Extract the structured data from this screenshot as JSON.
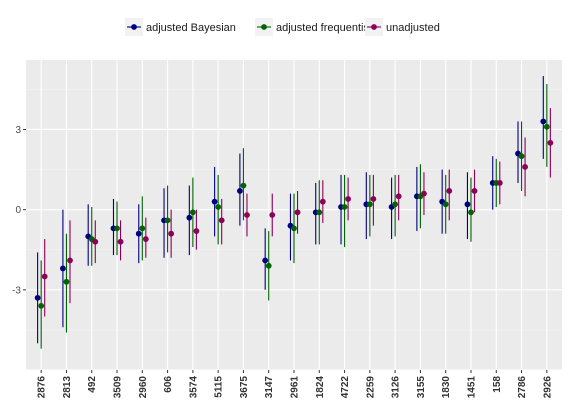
{
  "chart_data": {
    "type": "scatter",
    "subtype": "point-range",
    "title": "",
    "xlabel": "",
    "ylabel": "",
    "ylim": [
      -6.0,
      5.6
    ],
    "y_ticks": [
      -3,
      0,
      3
    ],
    "grid": true,
    "legend": {
      "position": "top",
      "show": true
    },
    "categories": [
      "2876",
      "2813",
      "492",
      "3509",
      "2960",
      "606",
      "3574",
      "5115",
      "3675",
      "3147",
      "2961",
      "1824",
      "4722",
      "2259",
      "3126",
      "3155",
      "1830",
      "1451",
      "158",
      "2786",
      "2926"
    ],
    "series": [
      {
        "name": "adjusted Bayesian",
        "color": "#000080",
        "values": [
          -3.3,
          -2.2,
          -1.0,
          -0.7,
          -0.9,
          -0.4,
          -0.3,
          0.3,
          0.7,
          -1.9,
          -0.6,
          -0.1,
          0.1,
          0.2,
          0.1,
          0.5,
          0.3,
          0.2,
          1.0,
          2.1,
          3.3
        ],
        "lower": [
          -5.0,
          -4.4,
          -2.1,
          -1.7,
          -2.0,
          -1.8,
          -1.7,
          -1.0,
          -0.6,
          -3.0,
          -1.9,
          -1.3,
          -1.3,
          -1.1,
          -1.1,
          -0.8,
          -0.9,
          -1.1,
          0.0,
          1.0,
          1.9
        ],
        "upper": [
          -1.6,
          0.0,
          0.2,
          0.4,
          0.2,
          0.8,
          0.9,
          1.6,
          2.1,
          -0.7,
          0.6,
          1.0,
          1.3,
          1.4,
          1.2,
          1.6,
          1.5,
          1.4,
          2.0,
          3.3,
          5.0
        ]
      },
      {
        "name": "adjusted frequentist",
        "color": "#006400",
        "values": [
          -3.6,
          -2.7,
          -1.1,
          -0.7,
          -0.7,
          -0.4,
          -0.1,
          0.1,
          0.9,
          -2.1,
          -0.7,
          -0.1,
          0.1,
          0.2,
          0.2,
          0.5,
          0.2,
          -0.1,
          1.0,
          2.0,
          3.1
        ],
        "lower": [
          -5.2,
          -4.6,
          -2.1,
          -1.7,
          -1.9,
          -1.6,
          -1.4,
          -1.3,
          -0.4,
          -3.4,
          -2.0,
          -1.3,
          -1.4,
          -1.0,
          -1.0,
          -0.7,
          -0.9,
          -1.2,
          0.1,
          0.7,
          1.6
        ],
        "upper": [
          -1.9,
          -0.9,
          0.1,
          0.3,
          0.5,
          0.9,
          1.2,
          1.3,
          2.3,
          -0.8,
          0.6,
          1.1,
          1.3,
          1.3,
          1.3,
          1.7,
          1.3,
          1.2,
          1.9,
          3.3,
          4.7
        ]
      },
      {
        "name": "unadjusted",
        "color": "#8B0058",
        "values": [
          -2.5,
          -1.9,
          -1.2,
          -1.2,
          -1.1,
          -0.9,
          -0.8,
          -0.4,
          -0.2,
          -0.2,
          -0.1,
          0.3,
          0.4,
          0.4,
          0.5,
          0.6,
          0.7,
          0.7,
          1.0,
          1.6,
          2.5
        ],
        "lower": [
          -4.0,
          -3.5,
          -2.0,
          -1.9,
          -1.8,
          -1.8,
          -1.5,
          -1.3,
          -1.0,
          -1.0,
          -0.9,
          -0.5,
          -0.4,
          -0.6,
          -0.4,
          -0.2,
          -0.4,
          -0.1,
          0.2,
          0.5,
          1.2
        ],
        "upper": [
          -1.1,
          -0.4,
          -0.4,
          -0.4,
          -0.3,
          0.0,
          0.0,
          0.4,
          0.6,
          0.6,
          0.7,
          1.1,
          1.2,
          1.3,
          1.3,
          1.4,
          1.5,
          1.5,
          1.8,
          2.7,
          3.8
        ]
      }
    ],
    "colors": {
      "panel_background": "#ebebeb",
      "grid_major": "#ffffff",
      "grid_minor": "#f5f5f5"
    }
  }
}
